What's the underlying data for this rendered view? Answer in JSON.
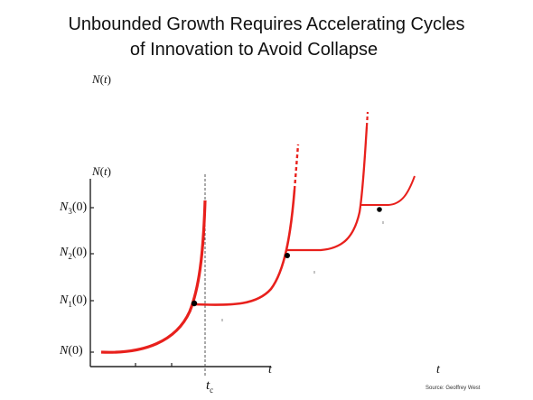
{
  "title": {
    "line1": "Unbounded Growth Requires Accelerating Cycles",
    "line2": "of Innovation to Avoid Collapse"
  },
  "labels": {
    "n_of_t_top": "N(t)",
    "n_of_t_axis": "N(t)",
    "n3": "N3(0)",
    "n2": "N2(0)",
    "n1": "N1(0)",
    "n0": "N(0)",
    "t_axis": "t",
    "t_far": "t",
    "tc": "tc"
  },
  "source": "Source: Geoffrey West",
  "colors": {
    "curve": "#e8201c",
    "axis": "#222222",
    "dot": "#000000"
  }
}
